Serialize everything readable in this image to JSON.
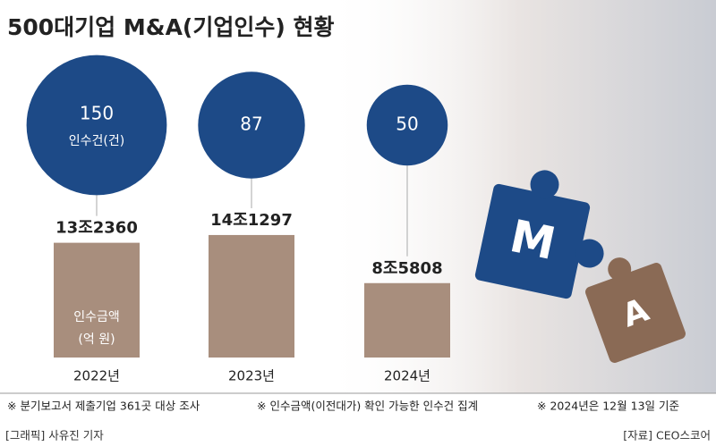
{
  "chart_data": {
    "type": "bar",
    "title": "500대기업 M&A(기업인수) 현황",
    "categories": [
      "2022년",
      "2023년",
      "2024년"
    ],
    "counts": {
      "label": "인수건(건)",
      "color": "#1d4a87",
      "values": [
        150,
        87,
        50
      ]
    },
    "amounts": {
      "label": "인수금액",
      "unit": "(억 원)",
      "color": "#a88e7d",
      "values": [
        132360,
        141297,
        85808
      ],
      "value_labels": [
        "13조2360",
        "14조1297",
        "8조5808"
      ]
    },
    "illustration_letters": [
      "M",
      "A"
    ],
    "notes": [
      "※ 분기보고서 제출기업 361곳 대상 조사",
      "※ 인수금액(이전대가) 확인 가능한 인수건 집계",
      "※ 2024년은 12월 13일 기준"
    ],
    "credit": "[그래픽] 사유진 기자",
    "source": "[자료] CEO스코어"
  }
}
